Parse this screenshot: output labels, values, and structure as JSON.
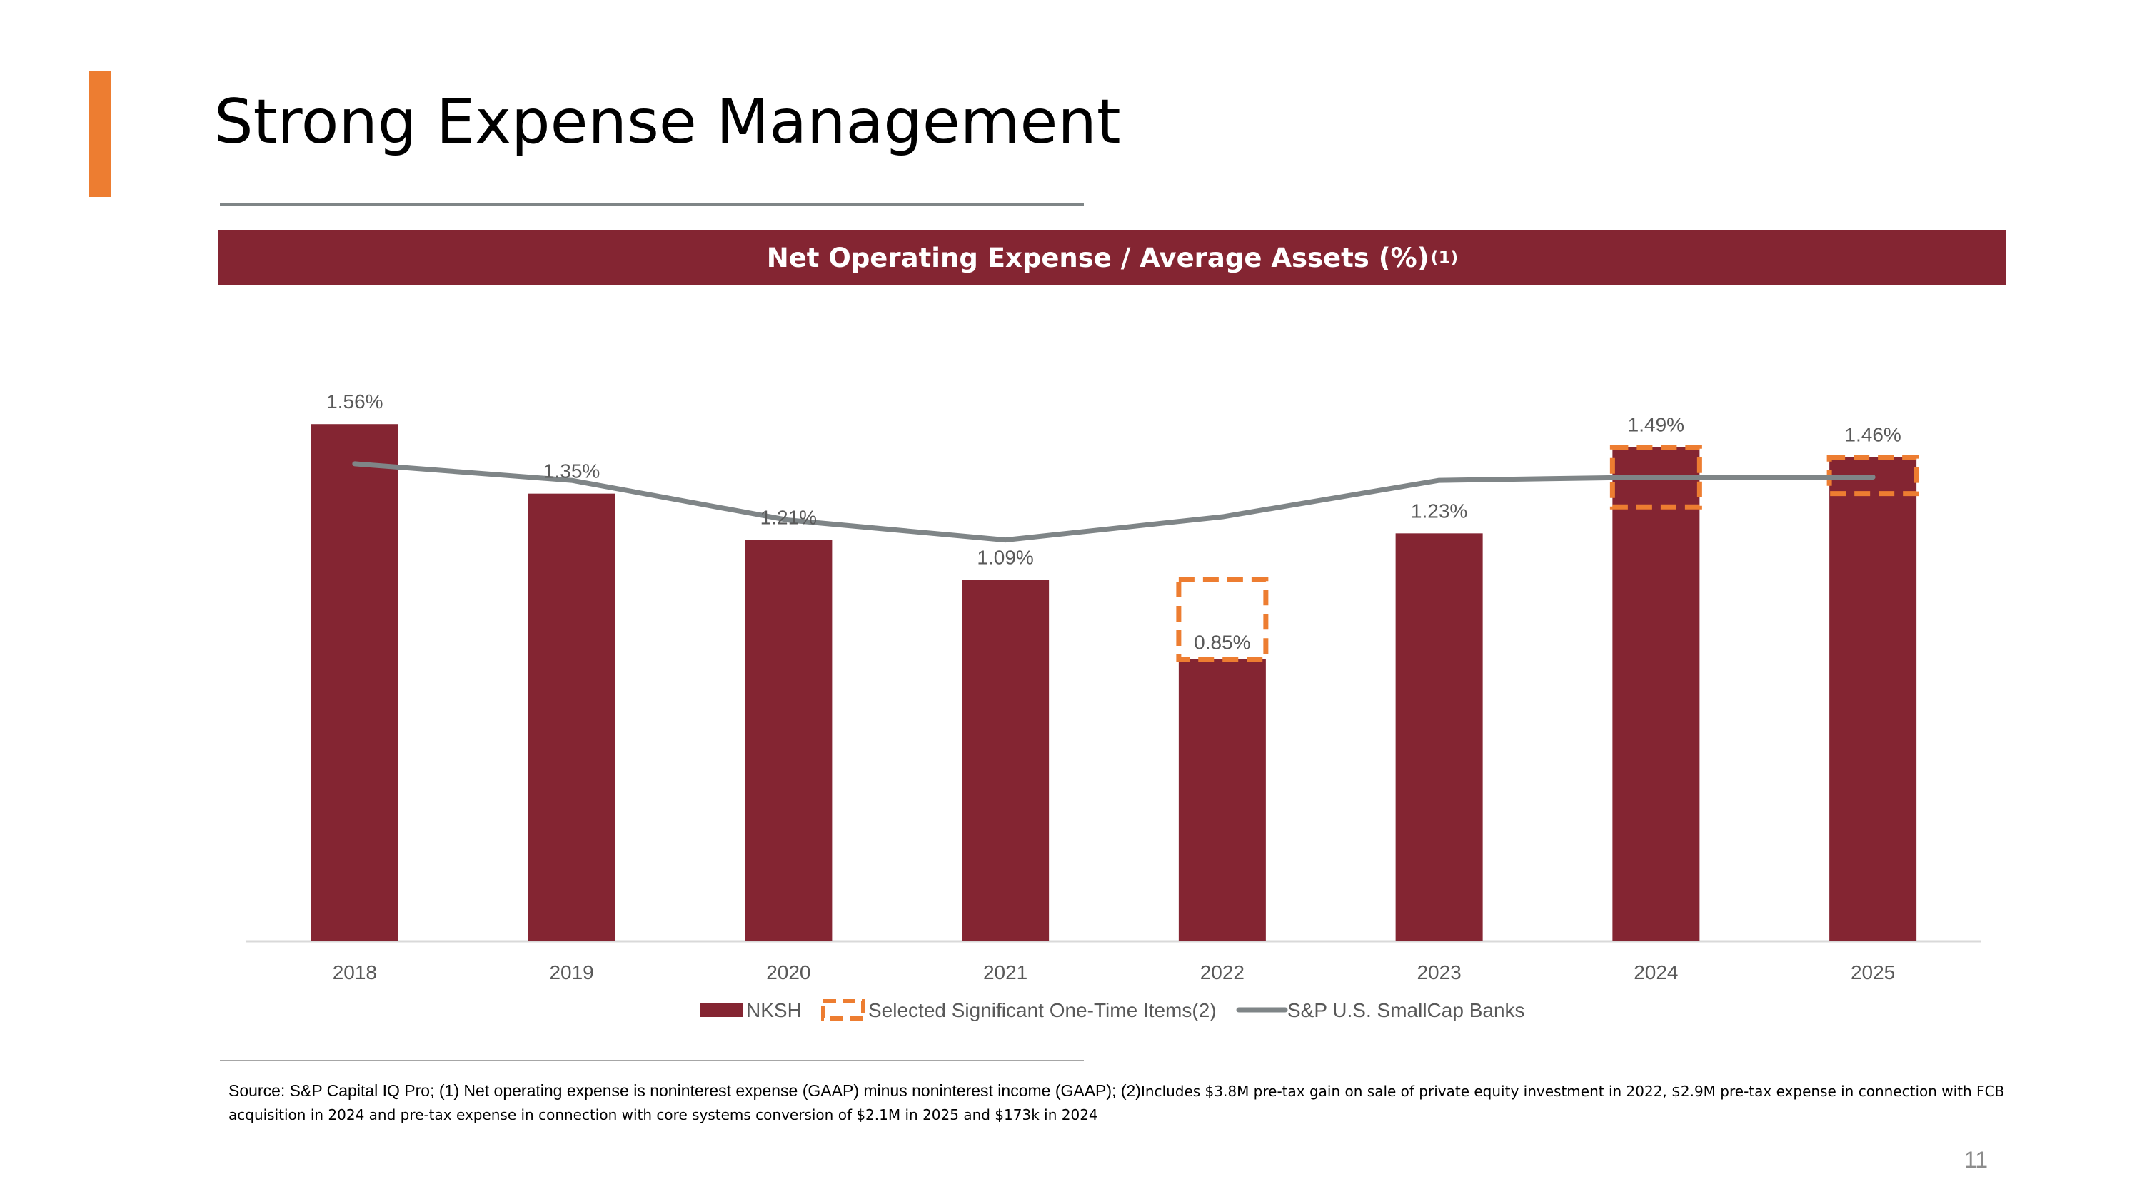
{
  "slide": {
    "title": "Strong Expense Management",
    "page_number": "11",
    "accent_color": "#ED7D31"
  },
  "chart_header": {
    "label": "Net Operating Expense / Average Assets (%)",
    "footnote": "(1)"
  },
  "chart_data": {
    "type": "bar",
    "title": "Net Operating Expense / Average Assets (%)",
    "categories": [
      "2018",
      "2019",
      "2020",
      "2021",
      "2022",
      "2023",
      "2024",
      "2025"
    ],
    "series": [
      {
        "name": "NKSH",
        "type": "bar",
        "color": "#842532",
        "values": [
          1.56,
          1.35,
          1.21,
          1.09,
          0.85,
          1.23,
          1.49,
          1.46
        ],
        "labels": [
          "1.56%",
          "1.35%",
          "1.21%",
          "1.09%",
          "0.85%",
          "1.23%",
          "1.49%",
          "1.46%"
        ]
      },
      {
        "name": "S&P U.S. SmallCap Banks",
        "type": "line",
        "color": "#7F8587",
        "values": [
          1.44,
          1.39,
          1.27,
          1.21,
          1.28,
          1.39,
          1.4,
          1.4
        ]
      }
    ],
    "one_time_items": {
      "name": "Selected Significant One-Time Items(2)",
      "color": "#ED7D31",
      "items": [
        {
          "category": "2022",
          "low": 0.85,
          "high": 1.09
        },
        {
          "category": "2024",
          "low": 1.31,
          "high": 1.49
        },
        {
          "category": "2025",
          "low": 1.35,
          "high": 1.46
        }
      ]
    },
    "ylim": [
      0,
      1.72
    ],
    "xlabel": "",
    "ylabel": "",
    "legend": [
      "NKSH",
      "Selected Significant One-Time Items(2)",
      "S&P U.S. SmallCap Banks"
    ],
    "legend_position": "bottom"
  },
  "source": {
    "main": "Source: S&P Capital IQ Pro; (1) Net operating expense is noninterest expense (GAAP) minus noninterest income (GAAP); (2)",
    "detail": "Includes $3.8M pre-tax gain on sale of private equity investment in 2022, $2.9M pre-tax expense in connection with FCB acquisition in 2024 and pre-tax expense in connection with core systems conversion of $2.1M in 2025 and $173k in 2024"
  }
}
